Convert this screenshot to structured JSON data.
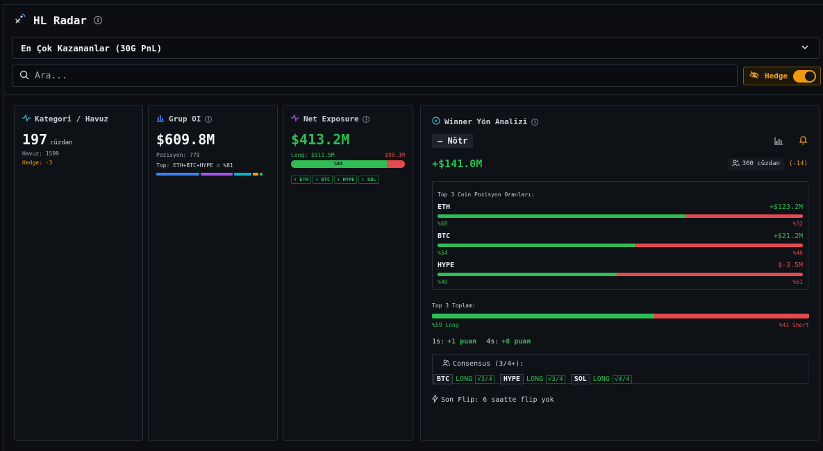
{
  "app": {
    "title": "HL Radar"
  },
  "filter": {
    "selected": "En Çok Kazananlar (30G PnL)"
  },
  "search": {
    "placeholder": "Ara..."
  },
  "hedge_toggle": {
    "label": "Hedge",
    "on": true
  },
  "cards": {
    "kategori": {
      "title": "Kategori / Havuz",
      "value": "197",
      "unit": "cüzdan",
      "havuz": "Havuz: 1599",
      "hedge": "Hedge: -3"
    },
    "grup_oi": {
      "title": "Grup OI",
      "value": "$609.8M",
      "pozisyon": "Pozisyon: 779",
      "top": "Top: ETH+BTC+HYPE = %81"
    },
    "net_exposure": {
      "title": "Net Exposure",
      "value": "$413.2M",
      "long_label": "Long: $511.5M",
      "short_label": "$98.3M",
      "long_pct_label": "%84",
      "long_fraction": 0.84,
      "chips": [
        "↑ ETH",
        "↑ BTC",
        "↑ HYPE",
        "↑ SOL"
      ]
    }
  },
  "winner": {
    "title": "Winner Yön Analizi",
    "status": "— Nötr",
    "pnl": "+$141.0M",
    "wallets": "300 cüzdan",
    "wallets_change": "(-14)",
    "coins_title": "Top 3 Coin Pozisyon Oranları:",
    "coins": [
      {
        "name": "ETH",
        "value": "+$123.2M",
        "long": "%68",
        "short": "%32",
        "long_fraction": 0.68
      },
      {
        "name": "BTC",
        "value": "+$21.2M",
        "long": "%54",
        "short": "%46",
        "long_fraction": 0.54
      },
      {
        "name": "HYPE",
        "value": "$-3.5M",
        "long": "%49",
        "short": "%51",
        "long_fraction": 0.49
      }
    ],
    "total_title": "Top 3 Toplam:",
    "total_long": "%59 Long",
    "total_short": "%41 Short",
    "total_long_fraction": 0.59,
    "score_1s_label": "1s:",
    "score_1s": "+1 puan",
    "score_4s_label": "4s:",
    "score_4s": "+8 puan",
    "consensus_title": "Consensus (3/4+):",
    "consensus": [
      {
        "coin": "BTC",
        "dir": "LONG",
        "count": "√3/4"
      },
      {
        "coin": "HYPE",
        "dir": "LONG",
        "count": "√3/4"
      },
      {
        "coin": "SOL",
        "dir": "LONG",
        "count": "√4/4"
      }
    ],
    "flip": "Son Flip: 6 saatte flip yok"
  },
  "colors": {
    "long": "#2fbe55",
    "short": "#e5484d",
    "hedge": "#f0a020"
  }
}
